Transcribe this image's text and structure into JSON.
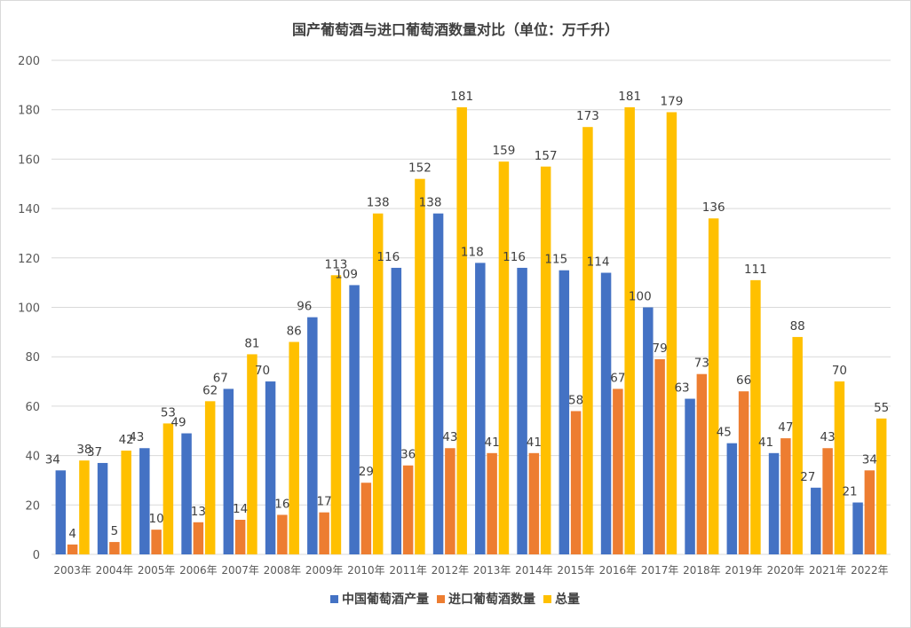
{
  "chart_data": {
    "type": "bar",
    "title": "国产葡萄酒与进口葡萄酒数量对比（单位：万千升）",
    "categories": [
      "2003年",
      "2004年",
      "2005年",
      "2006年",
      "2007年",
      "2008年",
      "2009年",
      "2010年",
      "2011年",
      "2012年",
      "2013年",
      "2014年",
      "2015年",
      "2016年",
      "2017年",
      "2018年",
      "2019年",
      "2020年",
      "2021年",
      "2022年"
    ],
    "series": [
      {
        "name": "中国葡萄酒产量",
        "color": "#4472c4",
        "values": [
          34,
          37,
          43,
          49,
          67,
          70,
          96,
          109,
          116,
          138,
          118,
          116,
          115,
          114,
          100,
          63,
          45,
          41,
          27,
          21
        ]
      },
      {
        "name": "进口葡萄酒数量",
        "color": "#ed7d31",
        "values": [
          4,
          5,
          10,
          13,
          14,
          16,
          17,
          29,
          36,
          43,
          41,
          41,
          58,
          67,
          79,
          73,
          66,
          47,
          43,
          34
        ]
      },
      {
        "name": "总量",
        "color": "#ffc000",
        "values": [
          38,
          42,
          53,
          62,
          81,
          86,
          113,
          138,
          152,
          181,
          159,
          157,
          173,
          181,
          179,
          136,
          111,
          88,
          70,
          55
        ]
      }
    ],
    "yticks": [
      0,
      20,
      40,
      60,
      80,
      100,
      120,
      140,
      160,
      180,
      200
    ],
    "ylim": [
      0,
      200
    ],
    "grid": true,
    "legend_position": "bottom-center",
    "xlabel": "",
    "ylabel": ""
  }
}
